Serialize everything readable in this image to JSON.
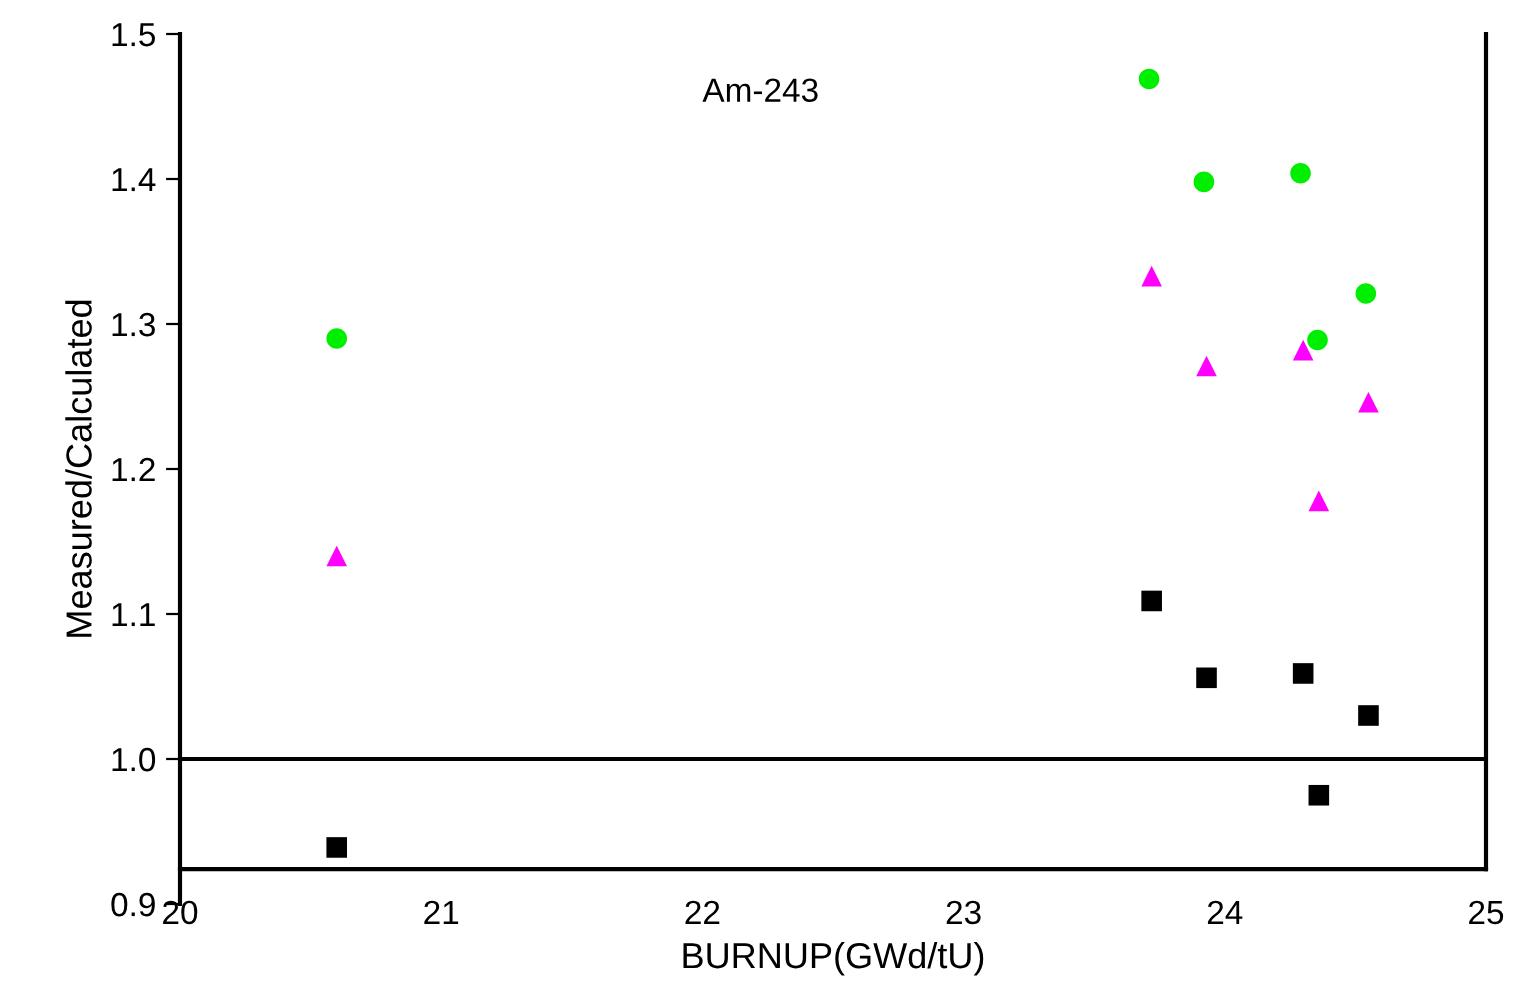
{
  "chart_data": {
    "type": "scatter",
    "xlabel": "BURNUP(GWd/tU)",
    "ylabel": "Measured/Calculated",
    "annotations": [
      "Am-243"
    ],
    "xlim": [
      20,
      25
    ],
    "xticks": [
      20,
      21,
      22,
      23,
      24,
      25
    ],
    "ylim": [
      0.9,
      1.5
    ],
    "yticks": [
      {
        "value": 0.9,
        "label": "0.9"
      },
      {
        "value": 1.0,
        "label": "1.0"
      },
      {
        "value": 1.1,
        "label": "1.1"
      },
      {
        "value": 1.2,
        "label": "1.2"
      },
      {
        "value": 1.3,
        "label": "1.3"
      },
      {
        "value": 1.4,
        "label": "1.4"
      },
      {
        "value": 1.5,
        "label": "1.5"
      }
    ],
    "grid": false,
    "ref_lines": [
      {
        "axis": "y",
        "value": 1.0,
        "color": "#000000"
      }
    ],
    "series": [
      {
        "color": "#000000",
        "marker": "square",
        "x": [
          20.6,
          23.72,
          23.93,
          24.3,
          24.55,
          24.36
        ],
        "values": [
          0.939,
          1.109,
          1.056,
          1.059,
          1.03,
          0.975
        ]
      },
      {
        "color": "#00ee00",
        "marker": "circle",
        "x": [
          20.6,
          23.71,
          23.92,
          24.29,
          24.54,
          24.355
        ],
        "values": [
          1.29,
          1.469,
          1.398,
          1.404,
          1.321,
          1.289
        ]
      },
      {
        "color": "#ff00ff",
        "marker": "triangle",
        "x": [
          20.6,
          23.72,
          23.93,
          24.3,
          24.55,
          24.36
        ],
        "values": [
          1.14,
          1.333,
          1.271,
          1.282,
          1.246,
          1.178
        ]
      }
    ]
  }
}
